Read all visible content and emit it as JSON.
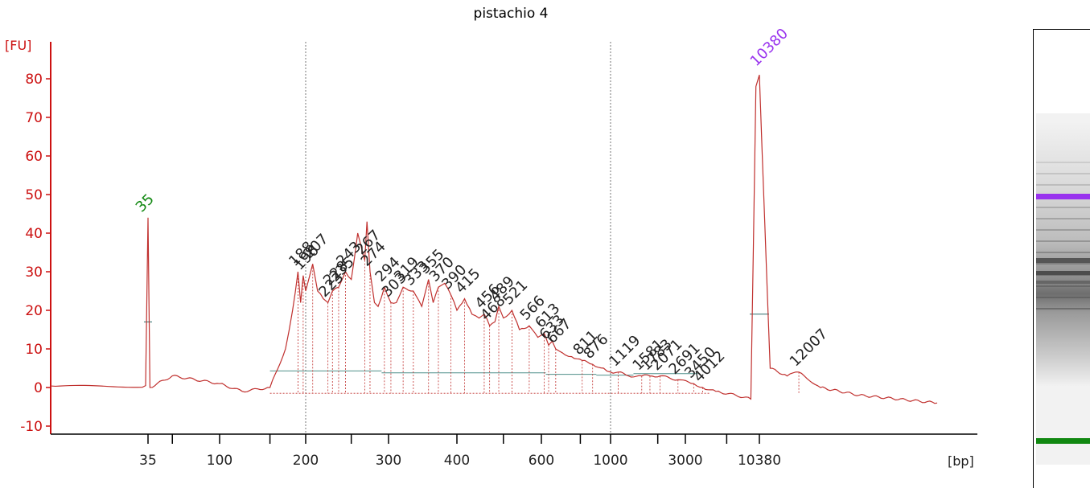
{
  "title": "pistachio 4",
  "chart_data": {
    "type": "line",
    "title": "pistachio 4",
    "ylabel": "[FU]",
    "xlabel": "[bp]",
    "ylim": [
      -12,
      88
    ],
    "y_ticks": [
      -10,
      0,
      10,
      20,
      30,
      40,
      50,
      60,
      70,
      80
    ],
    "x_tick_labels": [
      "35",
      "100",
      "200",
      "300",
      "400",
      "600",
      "1000",
      "3000",
      "10380"
    ],
    "lower_marker": {
      "label": "35",
      "size_bp": 35,
      "height": 44
    },
    "upper_marker": {
      "label": "10380",
      "size_bp": 10380,
      "height": 81
    },
    "peak_labels": [
      "188",
      "196",
      "207",
      "223",
      "228",
      "235",
      "243",
      "267",
      "274",
      "294",
      "303",
      "319",
      "333",
      "355",
      "370",
      "390",
      "415",
      "456",
      "468",
      "489",
      "521",
      "566",
      "613",
      "633",
      "667",
      "811",
      "876",
      "1119",
      "1581",
      "1783",
      "2071",
      "2691",
      "3450",
      "4012",
      "12007"
    ],
    "series": [
      {
        "x": [
          "35",
          "36",
          "50",
          "100",
          "120",
          "150",
          "170",
          "180",
          "188",
          "192",
          "196",
          "200",
          "207",
          "212",
          "218",
          "223",
          "228",
          "235",
          "243",
          "250",
          "258",
          "267",
          "270",
          "274",
          "280",
          "285",
          "294",
          "303",
          "310",
          "319",
          "333",
          "345",
          "355",
          "362",
          "370",
          "380",
          "390",
          "400",
          "415",
          "430",
          "445",
          "456",
          "468",
          "480",
          "489",
          "500",
          "521",
          "540",
          "566",
          "590",
          "613",
          "633",
          "650",
          "667",
          "700",
          "750",
          "811",
          "876",
          "950",
          "1000",
          "1119",
          "1300",
          "1581",
          "1783",
          "2071",
          "2691",
          "3450",
          "4012",
          "5000",
          "7000",
          "9000",
          "9800",
          "10380",
          "10800",
          "11500",
          "12007",
          "13000",
          "15000",
          "20000"
        ],
        "values": [
          44,
          0,
          3,
          1,
          -1,
          0,
          10,
          20,
          30,
          22,
          29,
          25,
          32,
          25,
          23,
          22,
          25,
          26,
          30,
          28,
          40,
          33,
          43,
          30,
          22,
          21,
          26,
          22,
          22,
          26,
          25,
          21,
          28,
          22,
          26,
          27,
          24,
          20,
          23,
          19,
          18,
          19,
          16,
          17,
          21,
          18,
          20,
          15,
          16,
          13,
          14,
          11,
          12,
          10,
          9,
          8,
          7,
          6,
          5,
          4,
          4,
          3,
          3,
          3,
          3,
          2,
          1,
          0,
          -1,
          -2,
          -3,
          78,
          81,
          5,
          3,
          4,
          0,
          -2,
          -4
        ]
      }
    ]
  },
  "gel": {
    "upper_marker_color": "#9933ee",
    "lower_marker_color": "#118811",
    "line_color": "#c0302e",
    "axis_color": "#cc1111",
    "marker_label_color_lower": "#118811",
    "marker_label_color_upper": "#9933ee"
  }
}
